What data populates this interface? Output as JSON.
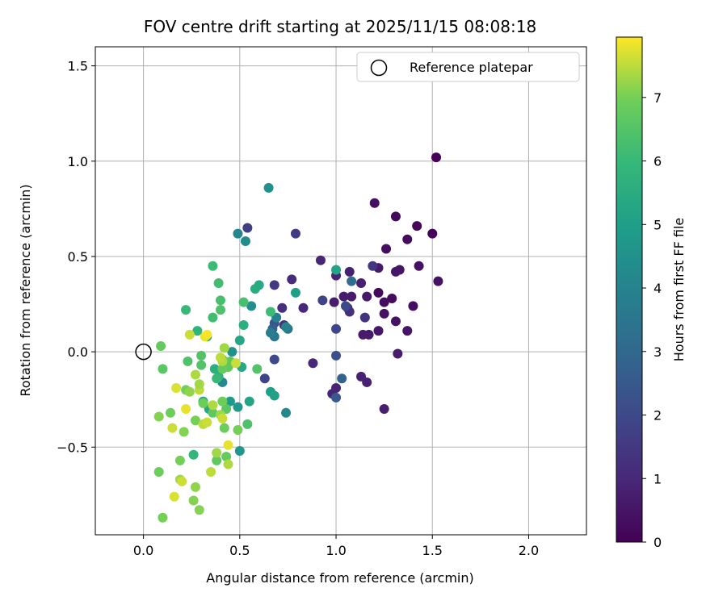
{
  "chart_data": {
    "type": "scatter",
    "title": "FOV centre drift starting at 2025/11/15 08:08:18",
    "xlabel": "Angular distance from reference (arcmin)",
    "ylabel": "Rotation from reference (arcmin)",
    "colorbar_label": "Hours from first FF file",
    "xlim": [
      -0.25,
      2.3
    ],
    "ylim": [
      -0.96,
      1.6
    ],
    "clim": [
      0,
      7.95
    ],
    "x_ticks": [
      0.0,
      0.5,
      1.0,
      1.5,
      2.0
    ],
    "x_tick_labels": [
      "0.0",
      "0.5",
      "1.0",
      "1.5",
      "2.0"
    ],
    "y_ticks": [
      -0.5,
      0.0,
      0.5,
      1.0,
      1.5
    ],
    "y_tick_labels": [
      "−0.5",
      "0.0",
      "0.5",
      "1.0",
      "1.5"
    ],
    "colorbar_ticks": [
      0,
      1,
      2,
      3,
      4,
      5,
      6,
      7
    ],
    "colorbar_tick_labels": [
      "0",
      "1",
      "2",
      "3",
      "4",
      "5",
      "6",
      "7"
    ],
    "grid": true,
    "legend": {
      "position": "top-right",
      "entries": [
        "Reference platepar"
      ]
    },
    "reference_point": {
      "x": 0.0,
      "y": 0.0
    },
    "points": [
      {
        "x": 1.52,
        "y": 1.02,
        "c": 0.05
      },
      {
        "x": 1.5,
        "y": 0.62,
        "c": 0.1
      },
      {
        "x": 1.42,
        "y": 0.66,
        "c": 0.15
      },
      {
        "x": 1.31,
        "y": 0.71,
        "c": 0.2
      },
      {
        "x": 1.37,
        "y": 0.59,
        "c": 0.25
      },
      {
        "x": 1.26,
        "y": 0.54,
        "c": 0.3
      },
      {
        "x": 1.2,
        "y": 0.78,
        "c": 0.35
      },
      {
        "x": 1.43,
        "y": 0.45,
        "c": 0.4
      },
      {
        "x": 1.53,
        "y": 0.37,
        "c": 0.45
      },
      {
        "x": 1.33,
        "y": 0.43,
        "c": 0.5
      },
      {
        "x": 1.31,
        "y": 0.42,
        "c": 0.55
      },
      {
        "x": 1.22,
        "y": 0.44,
        "c": 0.6
      },
      {
        "x": 1.22,
        "y": 0.31,
        "c": 0.2
      },
      {
        "x": 1.29,
        "y": 0.28,
        "c": 0.25
      },
      {
        "x": 1.25,
        "y": 0.26,
        "c": 0.3
      },
      {
        "x": 1.4,
        "y": 0.24,
        "c": 0.35
      },
      {
        "x": 1.25,
        "y": 0.2,
        "c": 0.4
      },
      {
        "x": 1.31,
        "y": 0.16,
        "c": 0.45
      },
      {
        "x": 1.37,
        "y": 0.11,
        "c": 0.5
      },
      {
        "x": 1.22,
        "y": 0.11,
        "c": 0.55
      },
      {
        "x": 1.17,
        "y": 0.09,
        "c": 0.6
      },
      {
        "x": 1.14,
        "y": 0.09,
        "c": 0.65
      },
      {
        "x": 1.32,
        "y": -0.01,
        "c": 0.7
      },
      {
        "x": 1.25,
        "y": -0.3,
        "c": 0.75
      },
      {
        "x": 1.16,
        "y": -0.16,
        "c": 0.8
      },
      {
        "x": 1.13,
        "y": -0.13,
        "c": 0.85
      },
      {
        "x": 1.0,
        "y": -0.19,
        "c": 0.9
      },
      {
        "x": 0.98,
        "y": -0.22,
        "c": 0.95
      },
      {
        "x": 0.88,
        "y": -0.06,
        "c": 1.0
      },
      {
        "x": 1.16,
        "y": 0.29,
        "c": 0.6
      },
      {
        "x": 1.08,
        "y": 0.29,
        "c": 0.65
      },
      {
        "x": 1.04,
        "y": 0.29,
        "c": 0.7
      },
      {
        "x": 0.99,
        "y": 0.26,
        "c": 0.75
      },
      {
        "x": 1.13,
        "y": 0.36,
        "c": 0.8
      },
      {
        "x": 1.07,
        "y": 0.42,
        "c": 0.85
      },
      {
        "x": 1.0,
        "y": 0.4,
        "c": 0.9
      },
      {
        "x": 0.92,
        "y": 0.48,
        "c": 0.95
      },
      {
        "x": 1.06,
        "y": 0.23,
        "c": 1.1
      },
      {
        "x": 1.07,
        "y": 0.21,
        "c": 1.2
      },
      {
        "x": 1.15,
        "y": 0.18,
        "c": 1.3
      },
      {
        "x": 1.19,
        "y": 0.45,
        "c": 1.4
      },
      {
        "x": 0.83,
        "y": 0.23,
        "c": 1.0
      },
      {
        "x": 0.77,
        "y": 0.38,
        "c": 1.1
      },
      {
        "x": 0.79,
        "y": 0.62,
        "c": 1.6
      },
      {
        "x": 0.54,
        "y": 0.65,
        "c": 1.7
      },
      {
        "x": 0.72,
        "y": 0.23,
        "c": 1.2
      },
      {
        "x": 0.73,
        "y": 0.14,
        "c": 1.3
      },
      {
        "x": 0.68,
        "y": 0.35,
        "c": 1.5
      },
      {
        "x": 0.93,
        "y": 0.27,
        "c": 1.8
      },
      {
        "x": 1.0,
        "y": 0.12,
        "c": 1.9
      },
      {
        "x": 1.05,
        "y": 0.24,
        "c": 2.0
      },
      {
        "x": 0.63,
        "y": -0.14,
        "c": 1.8
      },
      {
        "x": 0.68,
        "y": -0.04,
        "c": 2.0
      },
      {
        "x": 1.0,
        "y": -0.02,
        "c": 2.2
      },
      {
        "x": 1.0,
        "y": -0.24,
        "c": 2.5
      },
      {
        "x": 1.03,
        "y": -0.14,
        "c": 2.8
      },
      {
        "x": 1.08,
        "y": 0.37,
        "c": 3.2
      },
      {
        "x": 0.68,
        "y": 0.15,
        "c": 2.4
      },
      {
        "x": 0.67,
        "y": 0.12,
        "c": 2.7
      },
      {
        "x": 0.75,
        "y": 0.12,
        "c": 3.4
      },
      {
        "x": 0.68,
        "y": 0.08,
        "c": 3.6
      },
      {
        "x": 0.66,
        "y": 0.1,
        "c": 3.8
      },
      {
        "x": 0.69,
        "y": 0.18,
        "c": 3.9
      },
      {
        "x": 0.74,
        "y": 0.13,
        "c": 4.0
      },
      {
        "x": 0.74,
        "y": -0.32,
        "c": 4.2
      },
      {
        "x": 0.49,
        "y": 0.62,
        "c": 4.1
      },
      {
        "x": 0.53,
        "y": 0.58,
        "c": 4.3
      },
      {
        "x": 0.65,
        "y": 0.86,
        "c": 4.5
      },
      {
        "x": 0.56,
        "y": 0.24,
        "c": 4.4
      },
      {
        "x": 0.41,
        "y": -0.16,
        "c": 4.2
      },
      {
        "x": 0.46,
        "y": 0.0,
        "c": 4.5
      },
      {
        "x": 0.5,
        "y": -0.52,
        "c": 4.7
      },
      {
        "x": 0.49,
        "y": -0.29,
        "c": 4.8
      },
      {
        "x": 0.45,
        "y": -0.26,
        "c": 4.9
      },
      {
        "x": 0.66,
        "y": -0.21,
        "c": 5.0
      },
      {
        "x": 0.68,
        "y": -0.23,
        "c": 5.1
      },
      {
        "x": 0.55,
        "y": -0.26,
        "c": 5.2
      },
      {
        "x": 0.5,
        "y": 0.06,
        "c": 5.3
      },
      {
        "x": 0.51,
        "y": -0.08,
        "c": 5.4
      },
      {
        "x": 0.58,
        "y": 0.33,
        "c": 5.5
      },
      {
        "x": 0.52,
        "y": 0.14,
        "c": 5.6
      },
      {
        "x": 0.79,
        "y": 0.31,
        "c": 5.0
      },
      {
        "x": 1.0,
        "y": 0.43,
        "c": 5.2
      },
      {
        "x": 0.6,
        "y": 0.35,
        "c": 5.4
      },
      {
        "x": 0.33,
        "y": 0.08,
        "c": 5.1
      },
      {
        "x": 0.34,
        "y": -0.3,
        "c": 5.3
      },
      {
        "x": 0.31,
        "y": -0.26,
        "c": 5.5
      },
      {
        "x": 0.37,
        "y": -0.09,
        "c": 5.6
      },
      {
        "x": 0.39,
        "y": -0.13,
        "c": 5.7
      },
      {
        "x": 0.28,
        "y": 0.11,
        "c": 5.8
      },
      {
        "x": 0.26,
        "y": -0.54,
        "c": 5.9
      },
      {
        "x": 0.38,
        "y": -0.14,
        "c": 6.0
      },
      {
        "x": 0.22,
        "y": 0.22,
        "c": 6.0
      },
      {
        "x": 0.36,
        "y": 0.45,
        "c": 6.1
      },
      {
        "x": 0.39,
        "y": 0.36,
        "c": 6.2
      },
      {
        "x": 0.4,
        "y": 0.27,
        "c": 6.3
      },
      {
        "x": 0.4,
        "y": 0.22,
        "c": 6.4
      },
      {
        "x": 0.36,
        "y": 0.18,
        "c": 6.2
      },
      {
        "x": 0.66,
        "y": 0.21,
        "c": 6.1
      },
      {
        "x": 0.59,
        "y": -0.09,
        "c": 6.5
      },
      {
        "x": 0.52,
        "y": 0.26,
        "c": 6.3
      },
      {
        "x": 0.54,
        "y": -0.38,
        "c": 6.4
      },
      {
        "x": 0.1,
        "y": -0.09,
        "c": 6.6
      },
      {
        "x": 0.23,
        "y": -0.05,
        "c": 6.4
      },
      {
        "x": 0.3,
        "y": -0.02,
        "c": 6.5
      },
      {
        "x": 0.3,
        "y": -0.07,
        "c": 6.5
      },
      {
        "x": 0.41,
        "y": -0.04,
        "c": 6.6
      },
      {
        "x": 0.44,
        "y": -0.08,
        "c": 6.7
      },
      {
        "x": 0.45,
        "y": -0.05,
        "c": 6.7
      },
      {
        "x": 0.41,
        "y": -0.09,
        "c": 6.8
      },
      {
        "x": 0.43,
        "y": -0.3,
        "c": 6.6
      },
      {
        "x": 0.36,
        "y": -0.32,
        "c": 6.7
      },
      {
        "x": 0.41,
        "y": -0.26,
        "c": 6.9
      },
      {
        "x": 0.43,
        "y": -0.55,
        "c": 6.8
      },
      {
        "x": 0.38,
        "y": -0.57,
        "c": 6.7
      },
      {
        "x": 0.42,
        "y": -0.4,
        "c": 6.9
      },
      {
        "x": 0.49,
        "y": -0.41,
        "c": 7.0
      },
      {
        "x": 0.31,
        "y": -0.27,
        "c": 6.9
      },
      {
        "x": 0.27,
        "y": -0.36,
        "c": 7.0
      },
      {
        "x": 0.21,
        "y": -0.42,
        "c": 7.1
      },
      {
        "x": 0.22,
        "y": -0.2,
        "c": 7.0
      },
      {
        "x": 0.24,
        "y": -0.21,
        "c": 7.2
      },
      {
        "x": 0.14,
        "y": -0.32,
        "c": 6.9
      },
      {
        "x": 0.08,
        "y": -0.34,
        "c": 7.1
      },
      {
        "x": 0.19,
        "y": -0.57,
        "c": 7.0
      },
      {
        "x": 0.08,
        "y": -0.63,
        "c": 6.9
      },
      {
        "x": 0.1,
        "y": -0.87,
        "c": 7.0
      },
      {
        "x": 0.29,
        "y": -0.83,
        "c": 7.1
      },
      {
        "x": 0.27,
        "y": -0.71,
        "c": 7.2
      },
      {
        "x": 0.26,
        "y": -0.78,
        "c": 7.1
      },
      {
        "x": 0.19,
        "y": -0.67,
        "c": 7.3
      },
      {
        "x": 0.09,
        "y": 0.03,
        "c": 6.8
      },
      {
        "x": 0.42,
        "y": 0.02,
        "c": 7.3
      },
      {
        "x": 0.41,
        "y": -0.05,
        "c": 7.4
      },
      {
        "x": 0.4,
        "y": -0.03,
        "c": 7.5
      },
      {
        "x": 0.36,
        "y": -0.28,
        "c": 7.4
      },
      {
        "x": 0.31,
        "y": -0.38,
        "c": 7.5
      },
      {
        "x": 0.33,
        "y": -0.37,
        "c": 7.6
      },
      {
        "x": 0.4,
        "y": -0.33,
        "c": 7.3
      },
      {
        "x": 0.41,
        "y": -0.35,
        "c": 7.6
      },
      {
        "x": 0.44,
        "y": -0.49,
        "c": 7.8
      },
      {
        "x": 0.44,
        "y": -0.59,
        "c": 7.4
      },
      {
        "x": 0.38,
        "y": -0.53,
        "c": 7.3
      },
      {
        "x": 0.35,
        "y": -0.63,
        "c": 7.5
      },
      {
        "x": 0.15,
        "y": -0.4,
        "c": 7.6
      },
      {
        "x": 0.22,
        "y": -0.3,
        "c": 7.8
      },
      {
        "x": 0.17,
        "y": -0.19,
        "c": 7.7
      },
      {
        "x": 0.27,
        "y": -0.12,
        "c": 7.4
      },
      {
        "x": 0.29,
        "y": -0.2,
        "c": 7.5
      },
      {
        "x": 0.29,
        "y": -0.17,
        "c": 7.3
      },
      {
        "x": 0.32,
        "y": 0.08,
        "c": 7.8
      },
      {
        "x": 0.24,
        "y": 0.09,
        "c": 7.6
      },
      {
        "x": 0.48,
        "y": -0.06,
        "c": 7.6
      },
      {
        "x": 0.16,
        "y": -0.76,
        "c": 7.7
      },
      {
        "x": 0.2,
        "y": -0.68,
        "c": 7.6
      },
      {
        "x": 0.33,
        "y": 0.09,
        "c": 7.9
      }
    ]
  }
}
